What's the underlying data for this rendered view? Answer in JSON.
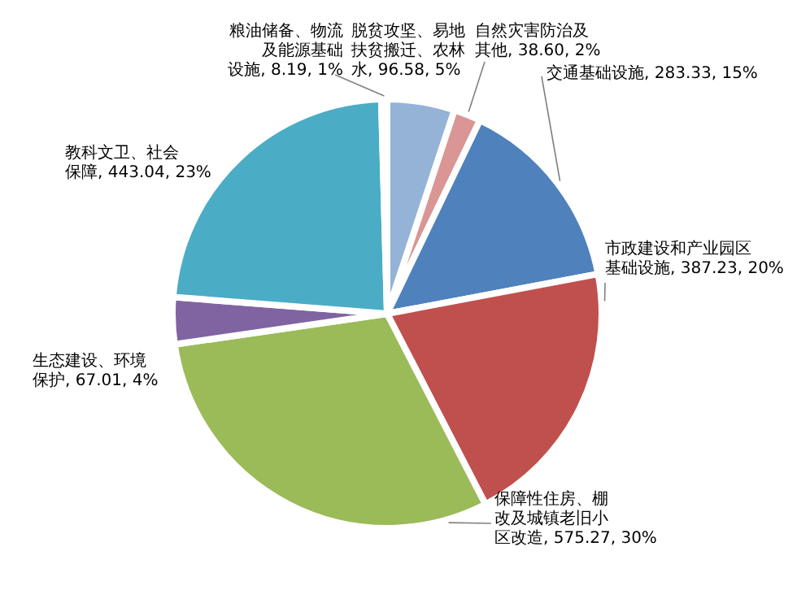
{
  "chart_data": {
    "type": "pie",
    "categories": [
      "脱贫攻坚、易地扶贫搬迁、农林水",
      "自然灾害防治及其他",
      "交通基础设施",
      "市政建设和产业园区基础设施",
      "保障性住房、棚改及城镇老旧小区改造",
      "生态建设、环境保护",
      "教科文卫、社会保障",
      "粮油储备、物流及能源基础设施"
    ],
    "values": [
      96.58,
      38.6,
      283.33,
      387.23,
      575.27,
      67.01,
      443.04,
      8.19
    ],
    "value_labels": [
      "96.58, 5%",
      "38.60, 2%",
      "283.33, 15%",
      "387.23, 20%",
      "575.27, 30%",
      "67.01, 4%",
      "443.04, 23%",
      "8.19, 1%"
    ],
    "colors": [
      "#95b3d7",
      "#d99694",
      "#4f81bd",
      "#c0504d",
      "#9bbb59",
      "#8064a2",
      "#4bacc6",
      "#f79646"
    ]
  }
}
